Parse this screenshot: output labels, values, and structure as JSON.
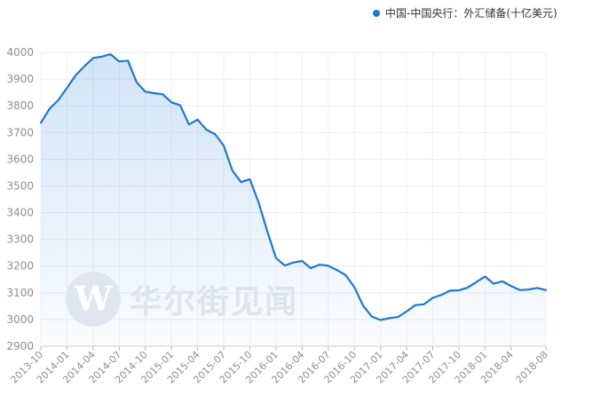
{
  "legend": {
    "label": "中国-中国央行：外汇储备(十亿美元)",
    "color": "#1e78d2"
  },
  "watermark": {
    "letter": "W",
    "text": "华尔街见闻"
  },
  "chart_data": {
    "type": "area",
    "title": "",
    "xlabel": "",
    "ylabel": "",
    "ylim": [
      2900,
      4000
    ],
    "yticks": [
      2900,
      3000,
      3100,
      3200,
      3300,
      3400,
      3500,
      3600,
      3700,
      3800,
      3900,
      4000
    ],
    "xtick_labels": [
      "2013-10",
      "2014-01",
      "2014-04",
      "2014-07",
      "2014-10",
      "2015-01",
      "2015-04",
      "2015-07",
      "2015-10",
      "2016-01",
      "2016-04",
      "2016-07",
      "2016-10",
      "2017-01",
      "2017-04",
      "2017-07",
      "2017-10",
      "2018-01",
      "2018-04",
      "2018-08"
    ],
    "grid": true,
    "legend_position": "top-right",
    "series": [
      {
        "name": "中国-中国央行：外汇储备(十亿美元)",
        "color": "#1e78d2",
        "x": [
          "2013-10",
          "2013-11",
          "2013-12",
          "2014-01",
          "2014-02",
          "2014-03",
          "2014-04",
          "2014-05",
          "2014-06",
          "2014-07",
          "2014-08",
          "2014-09",
          "2014-10",
          "2014-11",
          "2014-12",
          "2015-01",
          "2015-02",
          "2015-03",
          "2015-04",
          "2015-05",
          "2015-06",
          "2015-07",
          "2015-08",
          "2015-09",
          "2015-10",
          "2015-11",
          "2015-12",
          "2016-01",
          "2016-02",
          "2016-03",
          "2016-04",
          "2016-05",
          "2016-06",
          "2016-07",
          "2016-08",
          "2016-09",
          "2016-10",
          "2016-11",
          "2016-12",
          "2017-01",
          "2017-02",
          "2017-03",
          "2017-04",
          "2017-05",
          "2017-06",
          "2017-07",
          "2017-08",
          "2017-09",
          "2017-10",
          "2017-11",
          "2017-12",
          "2018-01",
          "2018-02",
          "2018-03",
          "2018-04",
          "2018-05",
          "2018-06",
          "2018-07",
          "2018-08"
        ],
        "values": [
          3736,
          3789,
          3821,
          3867,
          3914,
          3948,
          3979,
          3984,
          3993,
          3966,
          3969,
          3888,
          3853,
          3847,
          3843,
          3813,
          3802,
          3730,
          3748,
          3711,
          3694,
          3651,
          3557,
          3514,
          3525,
          3438,
          3330,
          3230,
          3202,
          3213,
          3219,
          3192,
          3205,
          3201,
          3185,
          3166,
          3121,
          3052,
          3011,
          2998,
          3005,
          3009,
          3030,
          3054,
          3057,
          3081,
          3092,
          3108,
          3109,
          3119,
          3140,
          3161,
          3134,
          3143,
          3125,
          3110,
          3112,
          3118,
          3110
        ]
      }
    ]
  }
}
